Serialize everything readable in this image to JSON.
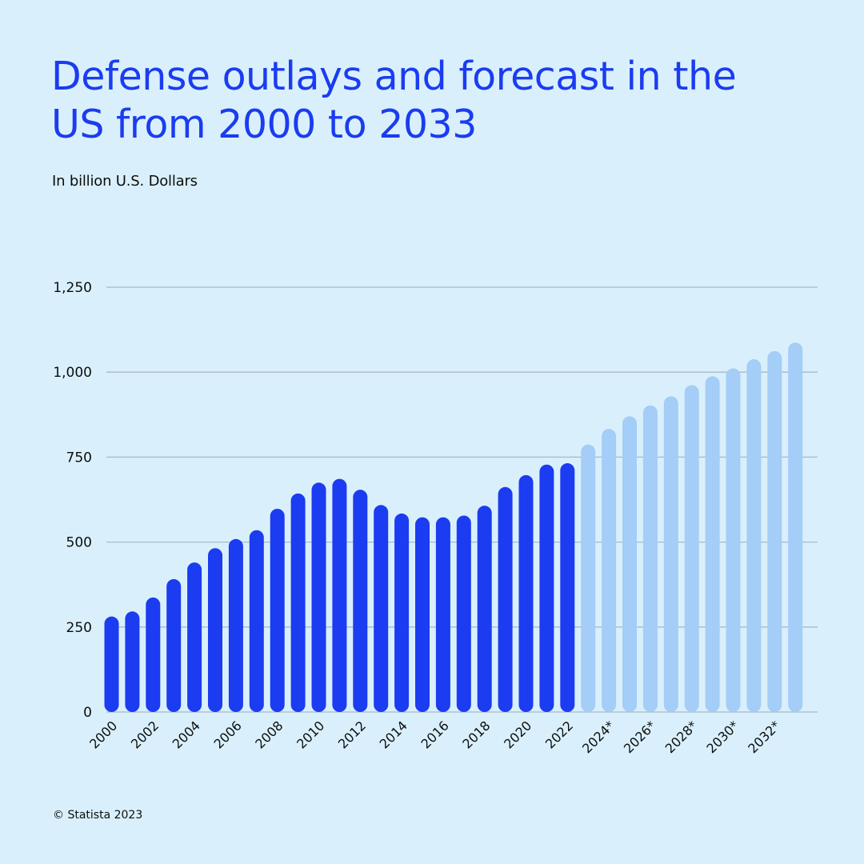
{
  "header": {
    "title": "Defense outlays and forecast in the US from 2000 to 2033",
    "subtitle": "In billion U.S. Dollars"
  },
  "footer": {
    "copyright": "© Statista 2023"
  },
  "colors": {
    "background": "#d9f0fc",
    "actual": "#1b3cf0",
    "forecast": "#a4cdf7",
    "gridline": "#a9b8c6",
    "title": "#1b3cf0"
  },
  "chart_data": {
    "type": "bar",
    "title": "Defense outlays and forecast in the US from 2000 to 2033",
    "subtitle": "In billion U.S. Dollars",
    "xlabel": "",
    "ylabel": "",
    "ylim": [
      0,
      1250
    ],
    "y_ticks": [
      0,
      250,
      500,
      750,
      1000,
      1250
    ],
    "y_tick_labels": [
      "0",
      "250",
      "500",
      "750",
      "1,000",
      "1,250"
    ],
    "grid": true,
    "categories": [
      "2000",
      "2001",
      "2002",
      "2003",
      "2004",
      "2005",
      "2006",
      "2007",
      "2008",
      "2009",
      "2010",
      "2011",
      "2012",
      "2013",
      "2014",
      "2015",
      "2016",
      "2017",
      "2018",
      "2019",
      "2020",
      "2021",
      "2022",
      "2023*",
      "2024*",
      "2025*",
      "2026*",
      "2027*",
      "2028*",
      "2029*",
      "2030*",
      "2031*",
      "2032*",
      "2033*"
    ],
    "tick_label_every": 2,
    "values": [
      281,
      296,
      337,
      391,
      440,
      482,
      509,
      535,
      598,
      643,
      675,
      686,
      654,
      609,
      584,
      573,
      573,
      578,
      607,
      662,
      697,
      728,
      732,
      787,
      833,
      870,
      902,
      929,
      962,
      988,
      1011,
      1038,
      1062,
      1087
    ],
    "is_forecast": [
      false,
      false,
      false,
      false,
      false,
      false,
      false,
      false,
      false,
      false,
      false,
      false,
      false,
      false,
      false,
      false,
      false,
      false,
      false,
      false,
      false,
      false,
      false,
      true,
      true,
      true,
      true,
      true,
      true,
      true,
      true,
      true,
      true,
      true
    ]
  }
}
